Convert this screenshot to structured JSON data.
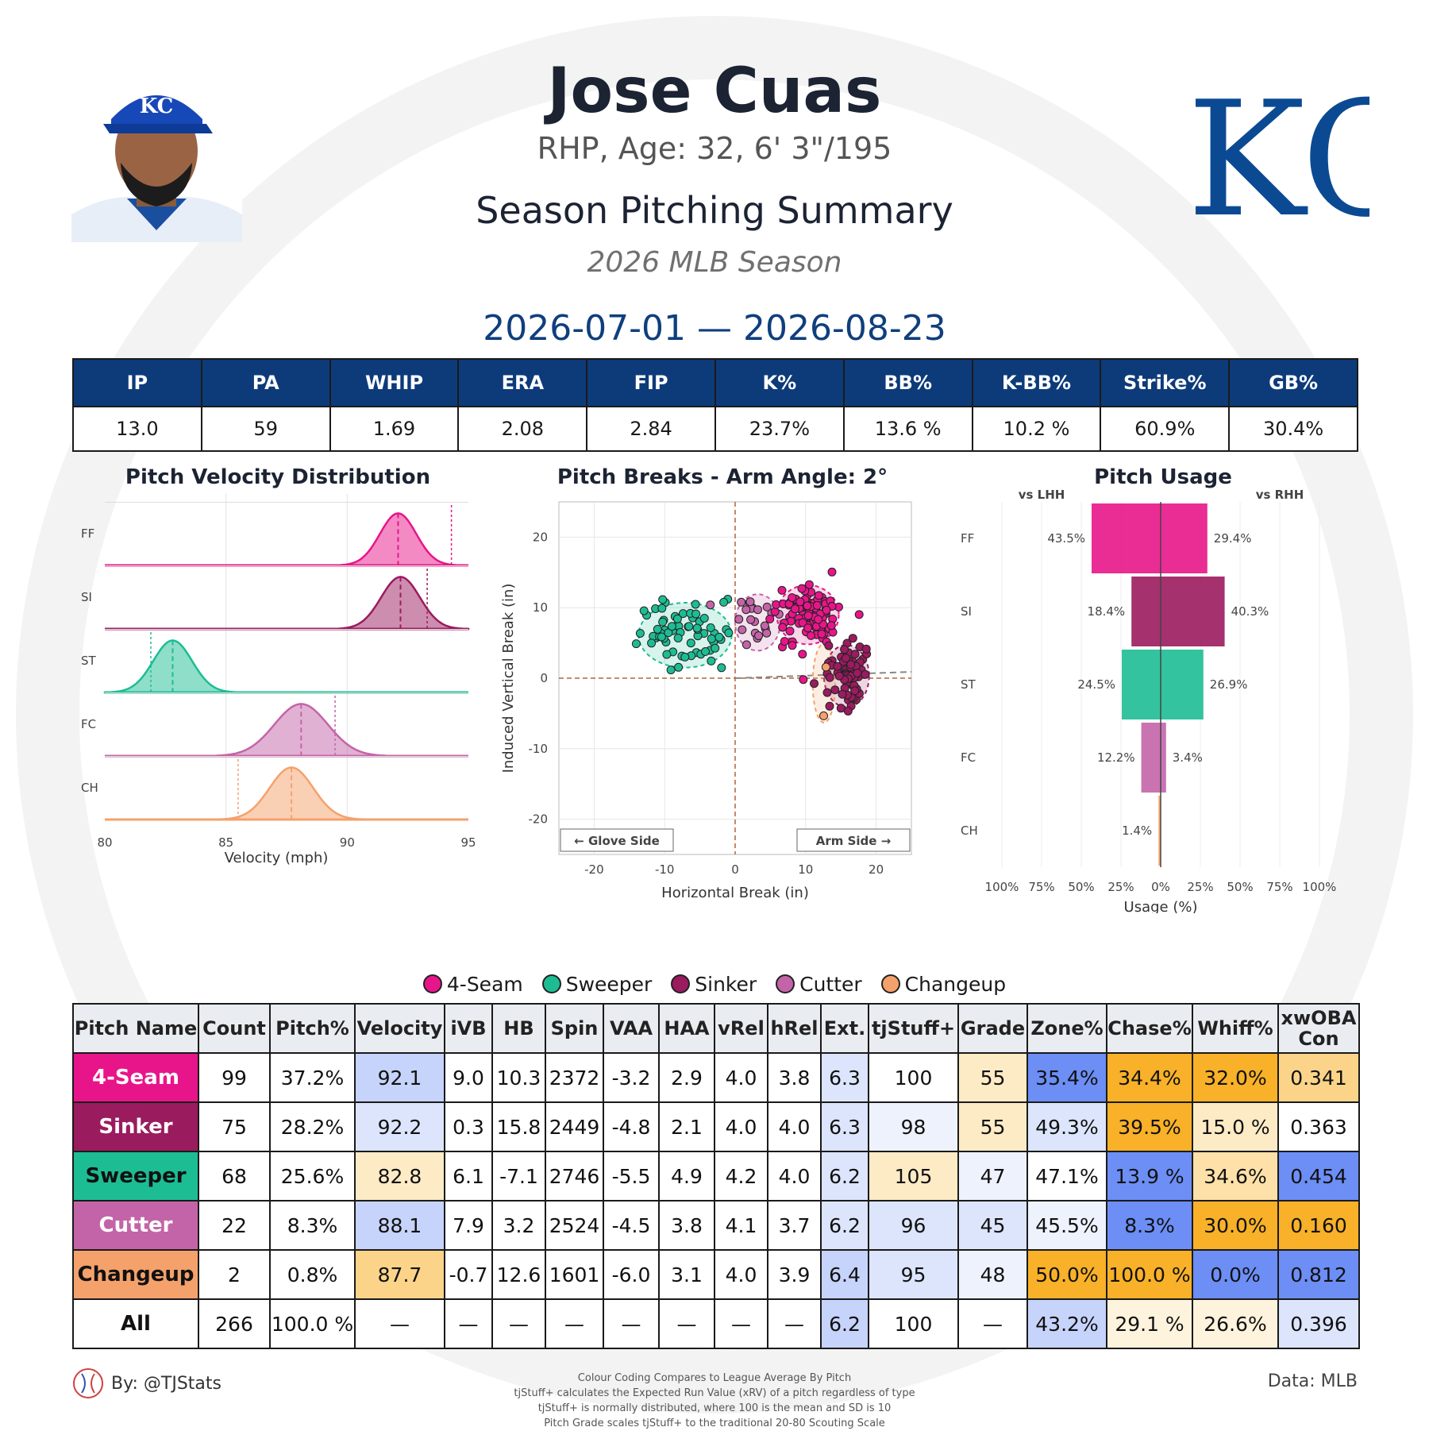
{
  "header": {
    "player_name": "Jose Cuas",
    "bio": "RHP, Age: 32, 6' 3\"/195",
    "title": "Season Pitching Summary",
    "season": "2026 MLB Season",
    "date_range": "2026-07-01 — 2026-08-23",
    "team_logo_text": "KC",
    "headshot_icon": "player-headshot-icon"
  },
  "stats": {
    "headers": [
      "IP",
      "PA",
      "WHIP",
      "ERA",
      "FIP",
      "K%",
      "BB%",
      "K-BB%",
      "Strike%",
      "GB%"
    ],
    "values": [
      "13.0",
      "59",
      "1.69",
      "2.08",
      "2.84",
      "23.7%",
      "13.6 %",
      "10.2 %",
      "60.9%",
      "30.4%"
    ]
  },
  "colors": {
    "FF": "#e8158a",
    "SI": "#9b1b5f",
    "ST": "#1dbd94",
    "FC": "#c464a8",
    "CH": "#f5a16b",
    "header_blue": "#0d3b7a",
    "blue_strong": "#6c8ef5",
    "blue_light": "#dce5fb",
    "orange_strong": "#f8b128",
    "orange_light": "#fde8c2"
  },
  "chart_data": [
    {
      "type": "area",
      "title": "Pitch Velocity Distribution",
      "xlabel": "Velocity (mph)",
      "ylabel": "",
      "xlim": [
        80,
        95
      ],
      "xticks": [
        "80",
        "85",
        "90",
        "95"
      ],
      "series": [
        {
          "name": "FF",
          "mean": 92.1,
          "sd": 0.75,
          "league_avg": 94.3
        },
        {
          "name": "SI",
          "mean": 92.2,
          "sd": 0.8,
          "league_avg": 93.3
        },
        {
          "name": "ST",
          "mean": 82.8,
          "sd": 0.8,
          "league_avg": 81.9
        },
        {
          "name": "FC",
          "mean": 88.1,
          "sd": 1.1,
          "league_avg": 89.5
        },
        {
          "name": "CH",
          "mean": 87.7,
          "sd": 0.9,
          "league_avg": 85.5
        }
      ]
    },
    {
      "type": "scatter",
      "title": "Pitch Breaks - Arm Angle: 2°",
      "xlabel": "Horizontal Break (in)",
      "ylabel": "Induced Vertical Break (in)",
      "xlim": [
        -25,
        25
      ],
      "ylim": [
        -25,
        25
      ],
      "xticks": [
        "-20",
        "-10",
        "0",
        "10",
        "20"
      ],
      "yticks": [
        "20",
        "10",
        "0",
        "-10",
        "-20"
      ],
      "annotations": [
        "← Glove Side",
        "Arm Side →"
      ],
      "series": [
        {
          "name": "FF",
          "center": [
            10.3,
            9.0
          ],
          "spread": [
            2.2,
            2.1
          ],
          "count": 99
        },
        {
          "name": "SI",
          "center": [
            15.8,
            0.3
          ],
          "spread": [
            1.6,
            2.2
          ],
          "count": 75
        },
        {
          "name": "ST",
          "center": [
            -7.1,
            6.1
          ],
          "spread": [
            3.3,
            2.3
          ],
          "count": 68
        },
        {
          "name": "FC",
          "center": [
            3.2,
            7.9
          ],
          "spread": [
            1.6,
            2.0
          ],
          "count": 22
        },
        {
          "name": "CH",
          "center": [
            12.6,
            -0.7
          ],
          "spread": [
            0.8,
            2.8
          ],
          "count": 2
        }
      ]
    },
    {
      "type": "bar",
      "title": "Pitch Usage",
      "xlabel": "Usage (%)",
      "left_label": "vs LHH",
      "right_label": "vs RHH",
      "xticks": [
        "100%",
        "75%",
        "50%",
        "25%",
        "0%",
        "25%",
        "50%",
        "75%",
        "100%"
      ],
      "categories": [
        "FF",
        "SI",
        "ST",
        "FC",
        "CH"
      ],
      "series": [
        {
          "name": "vs LHH",
          "values": [
            43.5,
            18.4,
            24.5,
            12.2,
            1.4
          ]
        },
        {
          "name": "vs RHH",
          "values": [
            29.4,
            40.3,
            26.9,
            3.4,
            0.0
          ]
        }
      ],
      "labels_lhh": [
        "43.5%",
        "18.4%",
        "24.5%",
        "12.2%",
        "1.4%"
      ],
      "labels_rhh": [
        "29.4%",
        "40.3%",
        "26.9%",
        "3.4%",
        ""
      ]
    }
  ],
  "legend": [
    {
      "label": "4-Seam",
      "color": "#e8158a"
    },
    {
      "label": "Sweeper",
      "color": "#1dbd94"
    },
    {
      "label": "Sinker",
      "color": "#9b1b5f"
    },
    {
      "label": "Cutter",
      "color": "#c464a8"
    },
    {
      "label": "Changeup",
      "color": "#f5a16b"
    }
  ],
  "pitch_table": {
    "headers": [
      "Pitch Name",
      "Count",
      "Pitch%",
      "Velocity",
      "iVB",
      "HB",
      "Spin",
      "VAA",
      "HAA",
      "vRel",
      "hRel",
      "Ext.",
      "tjStuff+",
      "Grade",
      "Zone%",
      "Chase%",
      "Whiff%",
      "xwOBA Con"
    ],
    "rows": [
      {
        "name": "4-Seam",
        "name_bg": "#e8158a",
        "name_fg": "#ffffff",
        "cells": [
          "99",
          "37.2%",
          "92.1",
          "9.0",
          "10.3",
          "2372",
          "-3.2",
          "2.9",
          "4.0",
          "3.8",
          "6.3",
          "100",
          "55",
          "35.4%",
          "34.4%",
          "32.0%",
          "0.341"
        ],
        "bg": [
          "#fff",
          "#fff",
          "#c6d3fa",
          "#fff",
          "#fff",
          "#fff",
          "#fff",
          "#fff",
          "#fff",
          "#fff",
          "#dce5fb",
          "#fff",
          "#fdebc6",
          "#6c8ef5",
          "#f8b128",
          "#f8b128",
          "#fbd48a"
        ]
      },
      {
        "name": "Sinker",
        "name_bg": "#9b1b5f",
        "name_fg": "#ffffff",
        "cells": [
          "75",
          "28.2%",
          "92.2",
          "0.3",
          "15.8",
          "2449",
          "-4.8",
          "2.1",
          "4.0",
          "4.0",
          "6.3",
          "98",
          "55",
          "49.3%",
          "39.5%",
          "15.0 %",
          "0.363"
        ],
        "bg": [
          "#fff",
          "#fff",
          "#dce5fb",
          "#fff",
          "#fff",
          "#fff",
          "#fff",
          "#fff",
          "#fff",
          "#fff",
          "#dce5fb",
          "#eef2fd",
          "#fdebc6",
          "#dce5fb",
          "#f8b128",
          "#fdebc6",
          "#fff"
        ]
      },
      {
        "name": "Sweeper",
        "name_bg": "#1dbd94",
        "name_fg": "#111111",
        "cells": [
          "68",
          "25.6%",
          "82.8",
          "6.1",
          "-7.1",
          "2746",
          "-5.5",
          "4.9",
          "4.2",
          "4.0",
          "6.2",
          "105",
          "47",
          "47.1%",
          "13.9 %",
          "34.6%",
          "0.454"
        ],
        "bg": [
          "#fff",
          "#fff",
          "#fdebc6",
          "#fff",
          "#fff",
          "#fff",
          "#fff",
          "#fff",
          "#fff",
          "#fff",
          "#dce5fb",
          "#fdebc6",
          "#eef2fd",
          "#fff",
          "#6c8ef5",
          "#fde1a8",
          "#6c8ef5"
        ]
      },
      {
        "name": "Cutter",
        "name_bg": "#c464a8",
        "name_fg": "#ffffff",
        "cells": [
          "22",
          "8.3%",
          "88.1",
          "7.9",
          "3.2",
          "2524",
          "-4.5",
          "3.8",
          "4.1",
          "3.7",
          "6.2",
          "96",
          "45",
          "45.5%",
          "8.3%",
          "30.0%",
          "0.160"
        ],
        "bg": [
          "#fff",
          "#fff",
          "#c6d3fa",
          "#fff",
          "#fff",
          "#fff",
          "#fff",
          "#fff",
          "#fff",
          "#fff",
          "#dce5fb",
          "#dce5fb",
          "#dce5fb",
          "#eef2fd",
          "#6c8ef5",
          "#f8b128",
          "#f8b128"
        ]
      },
      {
        "name": "Changeup",
        "name_bg": "#f5a16b",
        "name_fg": "#111111",
        "cells": [
          "2",
          "0.8%",
          "87.7",
          "-0.7",
          "12.6",
          "1601",
          "-6.0",
          "3.1",
          "4.0",
          "3.9",
          "6.4",
          "95",
          "48",
          "50.0%",
          "100.0 %",
          "0.0%",
          "0.812"
        ],
        "bg": [
          "#fff",
          "#fff",
          "#fbd48a",
          "#fff",
          "#fff",
          "#fff",
          "#fff",
          "#fff",
          "#fff",
          "#fff",
          "#c6d3fa",
          "#dce5fb",
          "#eef2fd",
          "#f8b128",
          "#f8b128",
          "#6c8ef5",
          "#6c8ef5"
        ]
      },
      {
        "name": "All",
        "name_bg": "#ffffff",
        "name_fg": "#111111",
        "cells": [
          "266",
          "100.0 %",
          "—",
          "—",
          "—",
          "—",
          "—",
          "—",
          "—",
          "—",
          "6.2",
          "100",
          "—",
          "43.2%",
          "29.1 %",
          "26.6%",
          "0.396"
        ],
        "bg": [
          "#fff",
          "#fff",
          "#fff",
          "#fff",
          "#fff",
          "#fff",
          "#fff",
          "#fff",
          "#fff",
          "#fff",
          "#c6d3fa",
          "#fff",
          "#fff",
          "#c6d3fa",
          "#fef3dc",
          "#fef3dc",
          "#dce5fb"
        ]
      }
    ]
  },
  "footer": {
    "by": "By: @TJStats",
    "data": "Data: MLB",
    "notes": [
      "Colour Coding Compares to League Average By Pitch",
      "tjStuff+ calculates the Expected Run Value (xRV) of a pitch regardless of type",
      "tjStuff+ is normally distributed, where 100 is the mean and SD is 10",
      "Pitch Grade scales tjStuff+ to the traditional 20-80 Scouting Scale"
    ]
  }
}
